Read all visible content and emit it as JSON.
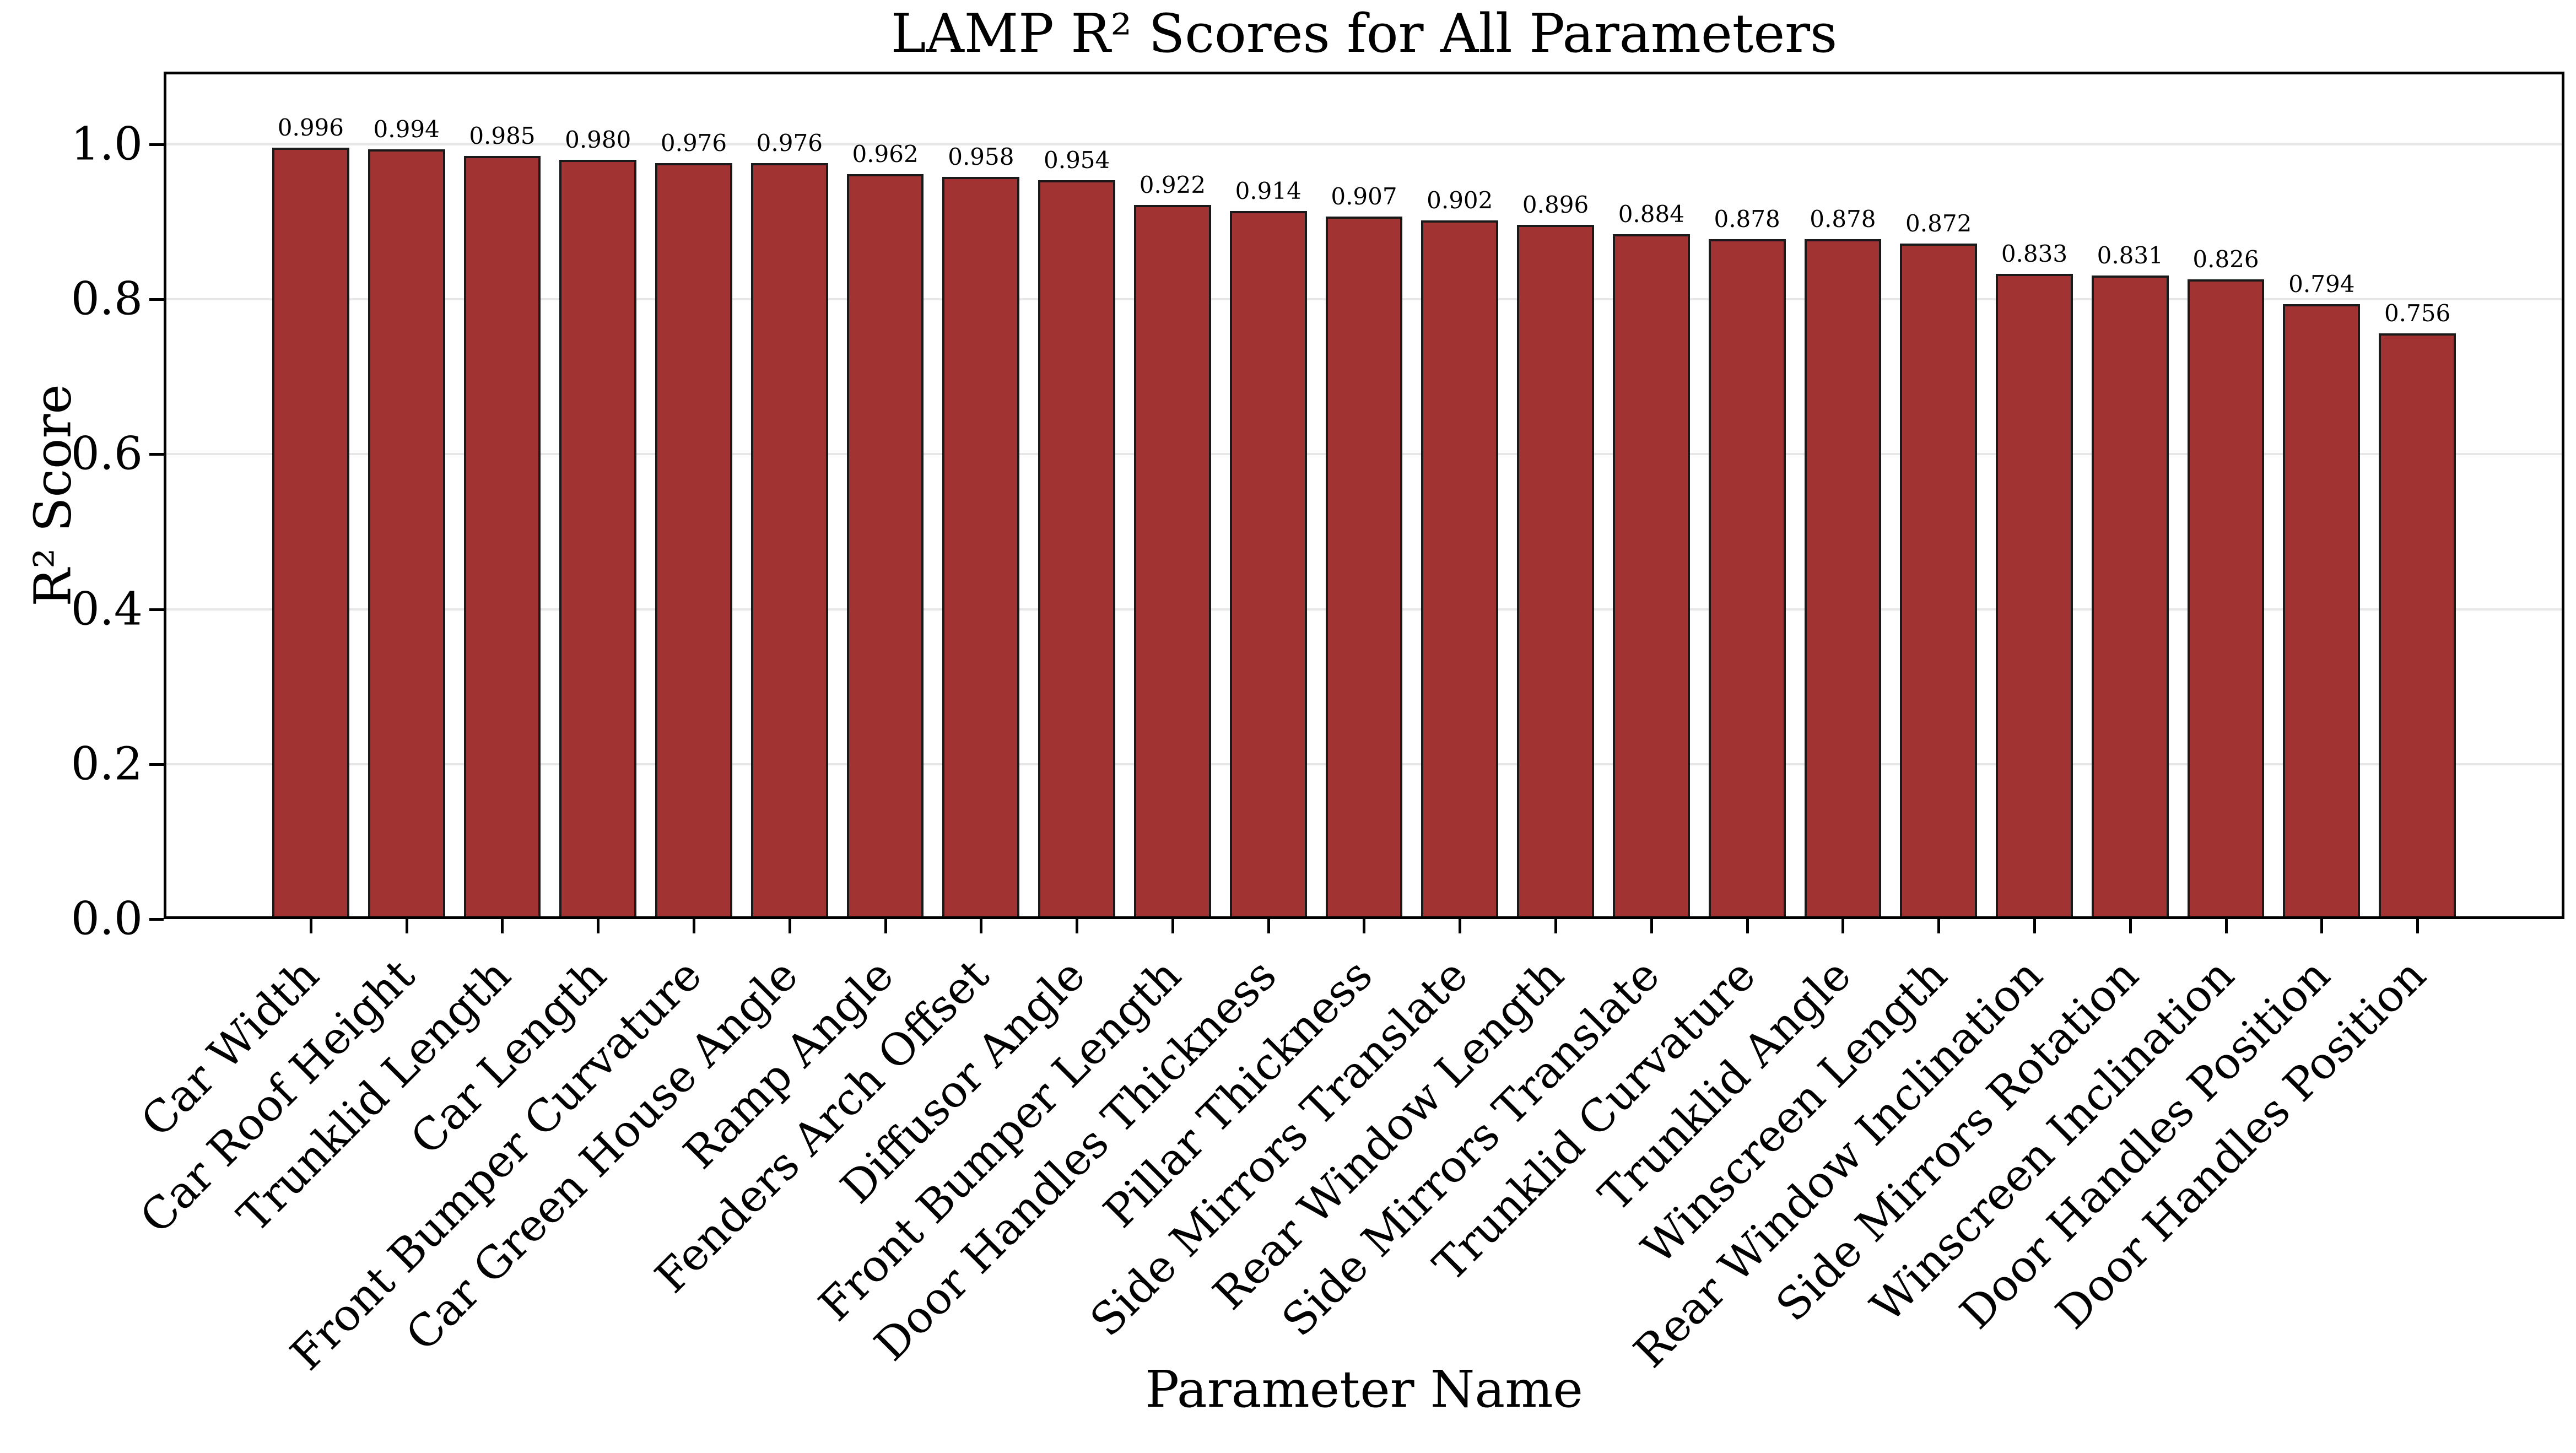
{
  "title": "LAMP R² Scores for All Parameters",
  "chart_data": {
    "type": "bar",
    "title": "LAMP R² Scores for All Parameters",
    "xlabel": "Parameter Name",
    "ylabel": "R² Score",
    "categories": [
      "Car Width",
      "Car Roof Height",
      "Trunklid Length",
      "Car Length",
      "Front Bumper Curvature",
      "Car Green House Angle",
      "Ramp Angle",
      "Fenders Arch Offset",
      "Diffusor Angle",
      "Front Bumper Length",
      "Door Handles Thickness",
      "Pillar Thickness",
      "Side Mirrors Translate",
      "Rear Window Length",
      "Side Mirrors Translate",
      "Trunklid Curvature",
      "Trunklid Angle",
      "Winscreen Length",
      "Rear Window Inclination",
      "Side Mirrors Rotation",
      "Winscreen Inclination",
      "Door Handles Position",
      "Door Handles Position"
    ],
    "values": [
      0.996,
      0.994,
      0.985,
      0.98,
      0.976,
      0.976,
      0.962,
      0.958,
      0.954,
      0.922,
      0.914,
      0.907,
      0.902,
      0.896,
      0.884,
      0.878,
      0.878,
      0.872,
      0.833,
      0.831,
      0.826,
      0.794,
      0.756
    ],
    "value_labels": [
      "0.996",
      "0.994",
      "0.985",
      "0.980",
      "0.976",
      "0.976",
      "0.962",
      "0.958",
      "0.954",
      "0.922",
      "0.914",
      "0.907",
      "0.902",
      "0.896",
      "0.884",
      "0.878",
      "0.878",
      "0.872",
      "0.833",
      "0.831",
      "0.826",
      "0.794",
      "0.756"
    ],
    "ylim": [
      0,
      1.094
    ],
    "yticks": [
      0.0,
      0.2,
      0.4,
      0.6,
      0.8,
      1.0
    ],
    "ytick_labels": [
      "0.0",
      "0.2",
      "0.4",
      "0.6",
      "0.8",
      "1.0"
    ],
    "grid": true,
    "legend": "none",
    "colors": {
      "bar_fill": "#A23333",
      "bar_edge": "#1A1A1A",
      "grid_line": "#E7E7E7",
      "spine": "#000000",
      "background": "#FFFFFF"
    }
  }
}
